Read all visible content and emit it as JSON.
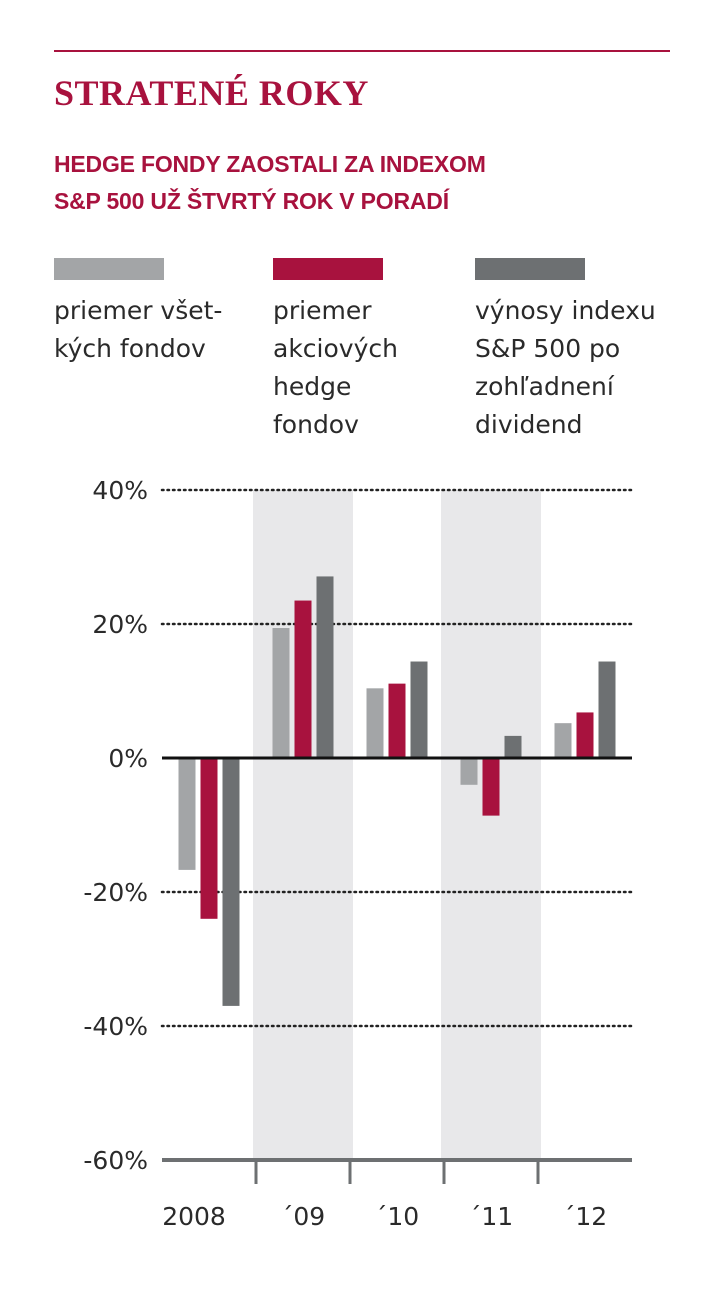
{
  "title": "STRATENÉ ROKY",
  "subtitle_lines": [
    "HEDGE FONDY ZAOSTALI ZA INDEXOM",
    "S&P 500 UŽ ŠTVRTÝ ROK V PORADÍ"
  ],
  "legend": [
    {
      "lines": [
        "priemer všet-",
        "kých fondov"
      ],
      "color": "#a3a5a7"
    },
    {
      "lines": [
        "priemer",
        "akciových",
        "hedge",
        "fondov"
      ],
      "color": "#a8123e"
    },
    {
      "lines": [
        "výnosy indexu",
        "S&P 500 po",
        "zohľadnení",
        "dividend"
      ],
      "color": "#6d7072"
    }
  ],
  "chart_data": {
    "type": "bar",
    "categories": [
      "2008",
      "´09",
      "´10",
      "´11",
      "´12"
    ],
    "series": [
      {
        "name": "priemer všetkých fondov",
        "values": [
          -16.7,
          19.4,
          10.4,
          -4.0,
          5.2
        ],
        "color": "#a3a5a7"
      },
      {
        "name": "priemer akciových hedge fondov",
        "values": [
          -24.0,
          23.5,
          11.1,
          -8.6,
          6.8
        ],
        "color": "#a8123e"
      },
      {
        "name": "výnosy indexu S&P 500 po zohľadnení dividend",
        "values": [
          -37.0,
          27.1,
          14.4,
          3.3,
          14.4
        ],
        "color": "#6d7072"
      }
    ],
    "y_ticks": [
      "40%",
      "20%",
      "0%",
      "-20%",
      "-40%",
      "-60%"
    ],
    "ylim": [
      -60,
      40
    ],
    "shaded_categories": [
      1,
      3
    ],
    "grid": "dotted",
    "legend_position": "top"
  }
}
